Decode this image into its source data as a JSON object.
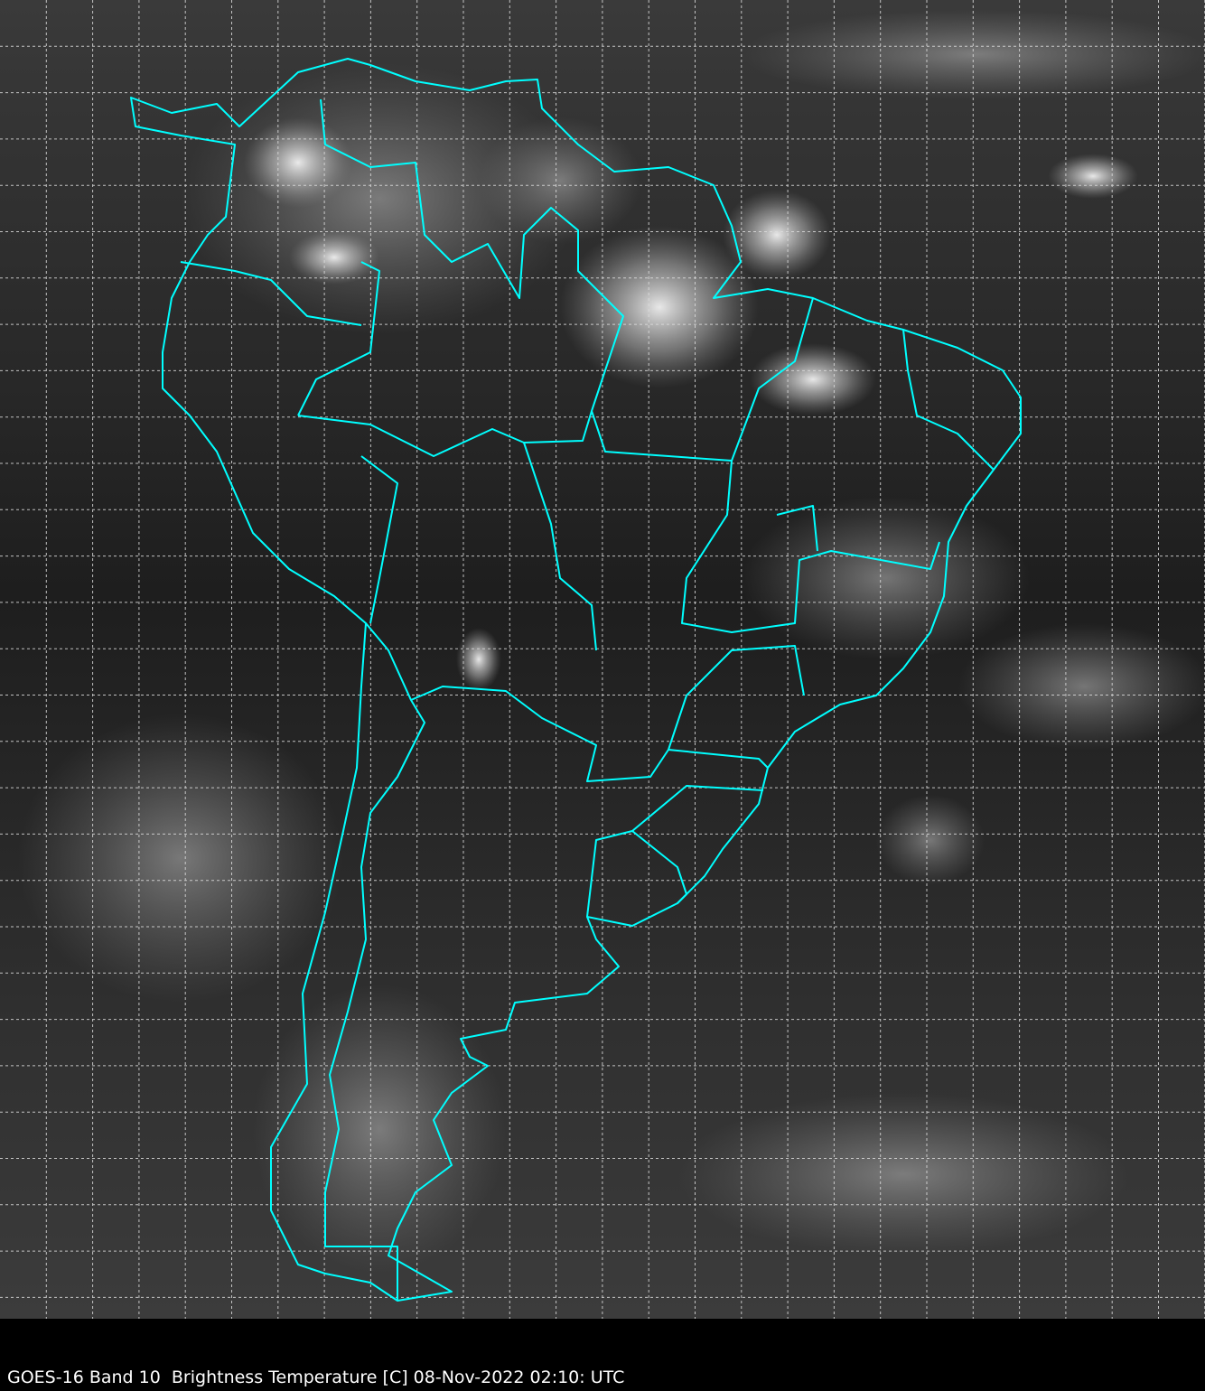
{
  "caption": "GOES-16 Band 10  Brightness Temperature [C] 08-Nov-2022 02:10: UTC",
  "map": {
    "satellite": "GOES-16",
    "band": "Band 10",
    "variable": "Brightness Temperature [C]",
    "datetime": "08-Nov-2022 02:10: UTC",
    "region": "South America",
    "colormap": "grayscale",
    "gridlines": true,
    "border_color": "#00FFFF",
    "grid_color": "#DDDDDD",
    "background_color": "#000000"
  }
}
